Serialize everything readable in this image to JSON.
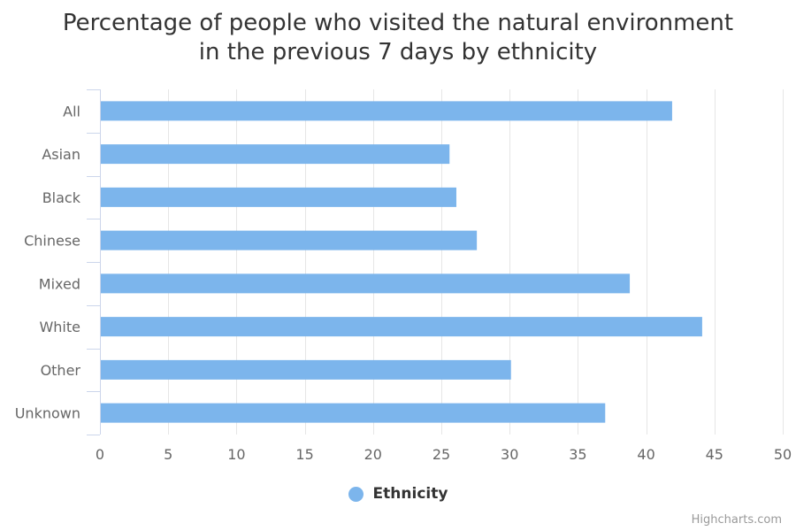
{
  "chart_data": {
    "type": "bar",
    "orientation": "horizontal",
    "title_lines": [
      "Percentage of people who visited the natural environment",
      "in the previous 7 days by ethnicity"
    ],
    "categories": [
      "All",
      "Asian",
      "Black",
      "Chinese",
      "Mixed",
      "White",
      "Other",
      "Unknown"
    ],
    "series": [
      {
        "name": "Ethnicity",
        "values": [
          41.9,
          25.6,
          26.1,
          27.6,
          38.8,
          44.1,
          30.1,
          37.0
        ]
      }
    ],
    "xlim": [
      0,
      50
    ],
    "x_ticks": [
      0,
      5,
      10,
      15,
      20,
      25,
      30,
      35,
      40,
      45,
      50
    ],
    "grid": true,
    "legend_position": "bottom-center",
    "colors": {
      "bar": "#7cb5ec",
      "grid": "#e6e6e6",
      "axis": "#ccd6eb",
      "label": "#666666"
    }
  },
  "credits": "Highcharts.com"
}
